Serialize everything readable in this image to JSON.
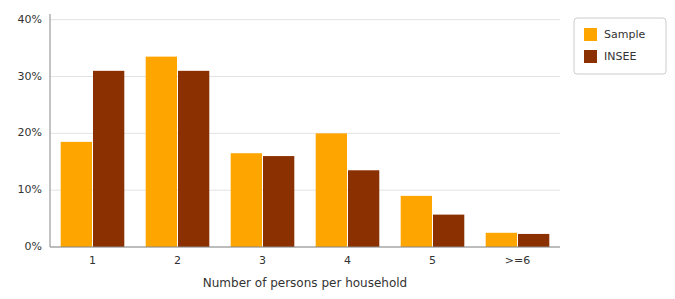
{
  "chart_data": {
    "type": "bar",
    "xlabel": "Number of persons per household",
    "categories": [
      "1",
      "2",
      "3",
      "4",
      "5",
      ">=6"
    ],
    "series": [
      {
        "name": "Sample",
        "color": "#FFA500",
        "values": [
          0.185,
          0.335,
          0.165,
          0.2,
          0.09,
          0.025
        ]
      },
      {
        "name": "INSEE",
        "color": "#8B3000",
        "values": [
          0.31,
          0.31,
          0.16,
          0.135,
          0.057,
          0.023
        ]
      }
    ],
    "ylim": [
      0,
      0.41
    ],
    "yticks": [
      {
        "value": 0.0,
        "label": "0%"
      },
      {
        "value": 0.1,
        "label": "10%"
      },
      {
        "value": 0.2,
        "label": "20%"
      },
      {
        "value": 0.3,
        "label": "30%"
      },
      {
        "value": 0.4,
        "label": "40%"
      }
    ],
    "grid": true,
    "legend": "right"
  }
}
